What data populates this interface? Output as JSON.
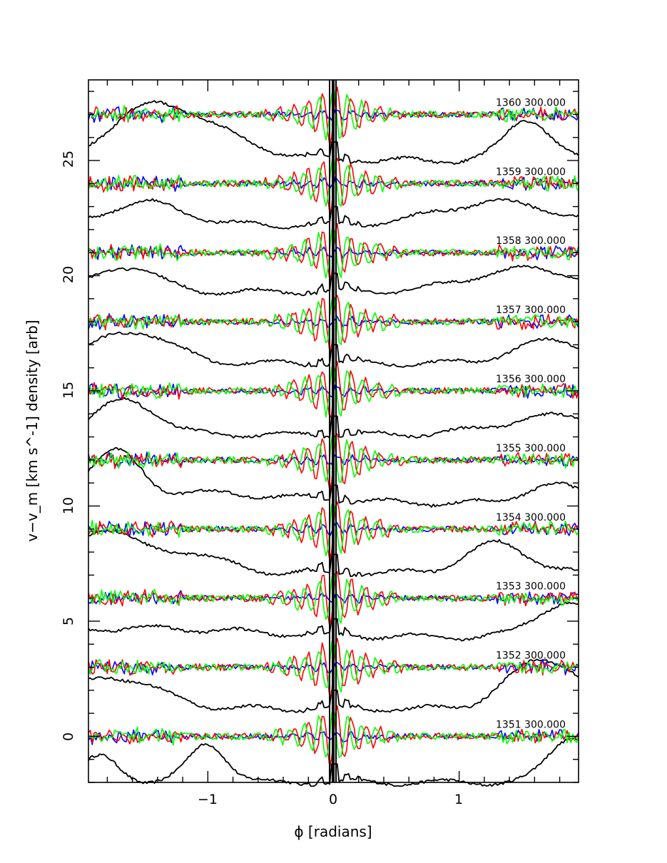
{
  "chart_data": {
    "type": "line",
    "xlabel": "ϕ [radians]",
    "ylabel": "v−v_m [km s^-1] density [arb]",
    "xlim": [
      -1.95,
      1.95
    ],
    "ylim": [
      -2.0,
      28.5
    ],
    "x_ticks": [
      -1,
      0,
      1
    ],
    "x_tick_labels": [
      "−1",
      "0",
      "1"
    ],
    "y_ticks": [
      0,
      5,
      10,
      15,
      20,
      25
    ],
    "y_tick_labels": [
      "0",
      "5",
      "10",
      "15",
      "20",
      "25"
    ],
    "grid": false,
    "colors": {
      "red": "#ff0000",
      "green": "#00ff00",
      "blue": "#0000ff",
      "black": "#000000"
    },
    "panels": [
      {
        "label": "1351 300.000",
        "baseline": 0,
        "density_base": -2.0,
        "density_peaks": [
          [
            -1.85,
            1.1,
            0.05
          ],
          [
            -1.0,
            1.7,
            0.05
          ],
          [
            1.9,
            2.0,
            0.06
          ]
        ]
      },
      {
        "label": "1352 300.000",
        "baseline": 3,
        "density_base": 1.2,
        "density_peaks": [
          [
            -1.85,
            1.1,
            0.1
          ],
          [
            -1.5,
            0.5,
            0.1
          ],
          [
            1.55,
            1.4,
            0.08
          ],
          [
            1.85,
            1.2,
            0.08
          ]
        ]
      },
      {
        "label": "1353 300.000",
        "baseline": 6,
        "density_base": 4.3,
        "density_peaks": [
          [
            -1.6,
            0.4,
            0.3
          ],
          [
            1.85,
            1.5,
            0.08
          ]
        ]
      },
      {
        "label": "1354 300.000",
        "baseline": 9,
        "density_base": 7.1,
        "density_peaks": [
          [
            -1.85,
            1.8,
            0.08
          ],
          [
            -1.2,
            0.9,
            0.1
          ],
          [
            1.3,
            1.3,
            0.08
          ]
        ]
      },
      {
        "label": "1355 300.000",
        "baseline": 12,
        "density_base": 10.1,
        "density_peaks": [
          [
            -1.85,
            1.2,
            0.06
          ],
          [
            -1.65,
            1.0,
            0.05
          ],
          [
            -1.3,
            0.5,
            0.3
          ],
          [
            1.75,
            0.8,
            0.08
          ]
        ]
      },
      {
        "label": "1356 300.000",
        "baseline": 15,
        "density_base": 13.1,
        "density_peaks": [
          [
            -1.65,
            1.5,
            0.08
          ],
          [
            1.8,
            0.8,
            0.15
          ]
        ]
      },
      {
        "label": "1357 300.000",
        "baseline": 18,
        "density_base": 16.2,
        "density_peaks": [
          [
            -1.6,
            1.4,
            0.1
          ],
          [
            1.75,
            1.0,
            0.1
          ]
        ]
      },
      {
        "label": "1358 300.000",
        "baseline": 21,
        "density_base": 19.3,
        "density_peaks": [
          [
            -1.65,
            1.1,
            0.08
          ],
          [
            1.55,
            1.0,
            0.15
          ]
        ]
      },
      {
        "label": "1359 300.000",
        "baseline": 24,
        "density_base": 22.2,
        "density_peaks": [
          [
            -1.5,
            1.0,
            0.1
          ],
          [
            1.3,
            1.0,
            0.15
          ]
        ]
      },
      {
        "label": "1360 300.000",
        "baseline": 27,
        "density_base": 25.0,
        "density_peaks": [
          [
            -1.2,
            1.6,
            0.15
          ],
          [
            -1.5,
            1.1,
            0.1
          ],
          [
            1.55,
            1.8,
            0.06
          ]
        ]
      }
    ]
  }
}
